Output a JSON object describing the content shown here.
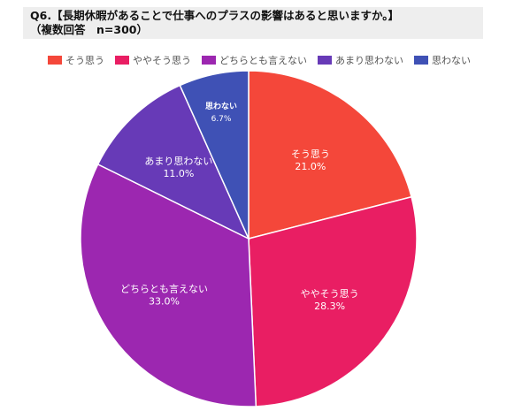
{
  "title": {
    "line1": "Q6.【長期休暇があることで仕事へのプラスの影響はあると思いますか。】",
    "line2": "（複数回答　n=300）"
  },
  "colors": {
    "sou_omou": "#f4473a",
    "yaya_sou_omou": "#e91e63",
    "dochira_tomo": "#9c27b0",
    "amari": "#673ab7",
    "omowanai": "#3f51b5"
  },
  "chart_data": {
    "type": "pie",
    "title": "",
    "legend_position": "top-left",
    "start_angle_deg": 0,
    "direction": "clockwise",
    "slices": [
      {
        "label": "そう思う",
        "value": 21.0,
        "value_label": "21.0%",
        "color": "#f4473a"
      },
      {
        "label": "ややそう思う",
        "value": 28.3,
        "value_label": "28.3%",
        "color": "#e91e63"
      },
      {
        "label": "どちらとも言えない",
        "value": 33.0,
        "value_label": "33.0%",
        "color": "#9c27b0"
      },
      {
        "label": "あまり思わない",
        "value": 11.0,
        "value_label": "11.0%",
        "color": "#673ab7"
      },
      {
        "label": "思わない",
        "value": 6.7,
        "value_label": "6.7%",
        "color": "#3f51b5"
      }
    ]
  }
}
